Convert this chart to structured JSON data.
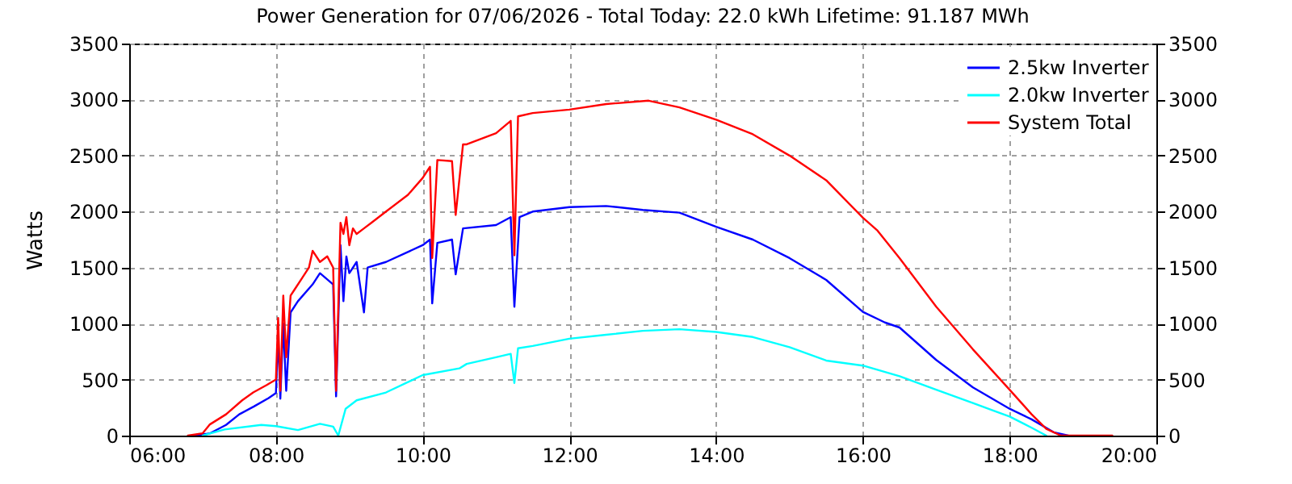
{
  "chart_data": {
    "type": "line",
    "title": "Power Generation for 07/06/2026 - Total Today: 22.0 kWh   Lifetime: 91.187 MWh",
    "ylabel": "Watts",
    "xlim": [
      6,
      20
    ],
    "xticks": [
      {
        "value": 6,
        "label": "06:00"
      },
      {
        "value": 8,
        "label": "08:00"
      },
      {
        "value": 10,
        "label": "10:00"
      },
      {
        "value": 12,
        "label": "12:00"
      },
      {
        "value": 14,
        "label": "14:00"
      },
      {
        "value": 16,
        "label": "16:00"
      },
      {
        "value": 18,
        "label": "18:00"
      },
      {
        "value": 20,
        "label": "20:00"
      }
    ],
    "ylim": [
      0,
      3500
    ],
    "yticks": [
      0,
      500,
      1000,
      1500,
      2000,
      2500,
      3000,
      3500
    ],
    "y2lim": [
      0,
      3500
    ],
    "y2ticks": [
      0,
      500,
      1000,
      1500,
      2000,
      2500,
      3000,
      3500
    ],
    "grid": true,
    "legend": "top right",
    "line_style": "solid",
    "series": [
      {
        "name": "2.5kw Inverter",
        "color": "#0000ff",
        "x": [
          6.9,
          7.1,
          7.32,
          7.5,
          7.7,
          7.9,
          8.0,
          8.03,
          8.06,
          8.1,
          8.14,
          8.2,
          8.3,
          8.5,
          8.6,
          8.78,
          8.82,
          8.88,
          8.92,
          8.96,
          9.0,
          9.1,
          9.2,
          9.25,
          9.5,
          10.0,
          10.1,
          10.13,
          10.2,
          10.4,
          10.45,
          10.55,
          11.0,
          11.2,
          11.25,
          11.32,
          11.5,
          12.0,
          12.5,
          13.0,
          13.5,
          14.0,
          14.5,
          15.0,
          15.5,
          16.0,
          16.3,
          16.5,
          17.0,
          17.5,
          18.0,
          18.3,
          18.6,
          18.8
        ],
        "values": [
          0,
          20,
          95,
          190,
          260,
          335,
          380,
          900,
          330,
          1000,
          400,
          1100,
          1200,
          1350,
          1450,
          1350,
          350,
          1700,
          1200,
          1600,
          1450,
          1550,
          1100,
          1500,
          1550,
          1700,
          1750,
          1180,
          1720,
          1750,
          1440,
          1850,
          1880,
          1950,
          1150,
          1950,
          2000,
          2040,
          2050,
          2015,
          1990,
          1865,
          1750,
          1585,
          1390,
          1105,
          1010,
          965,
          675,
          430,
          240,
          145,
          30,
          0
        ]
      },
      {
        "name": "2.0kw Inverter",
        "color": "#00ffff",
        "x": [
          7.0,
          7.3,
          7.8,
          8.0,
          8.3,
          8.6,
          8.78,
          8.85,
          8.95,
          9.1,
          9.5,
          10.0,
          10.5,
          10.6,
          11.0,
          11.2,
          11.25,
          11.3,
          11.5,
          12.0,
          12.5,
          13.0,
          13.5,
          14.0,
          14.5,
          15.0,
          15.5,
          16.0,
          16.5,
          17.0,
          17.5,
          18.0,
          18.3,
          18.5
        ],
        "values": [
          0,
          55,
          95,
          85,
          50,
          105,
          80,
          0,
          240,
          315,
          385,
          540,
          600,
          640,
          700,
          730,
          470,
          780,
          800,
          865,
          900,
          935,
          950,
          925,
          880,
          790,
          670,
          625,
          530,
          410,
          290,
          170,
          70,
          0
        ]
      },
      {
        "name": "System Total",
        "color": "#ff0000",
        "x": [
          6.8,
          7.0,
          7.1,
          7.32,
          7.54,
          7.69,
          7.87,
          8.0,
          8.03,
          8.06,
          8.1,
          8.14,
          8.2,
          8.25,
          8.35,
          8.45,
          8.5,
          8.6,
          8.7,
          8.78,
          8.82,
          8.88,
          8.92,
          8.96,
          9.0,
          9.05,
          9.1,
          9.2,
          9.3,
          9.5,
          9.8,
          10.0,
          10.1,
          10.13,
          10.2,
          10.4,
          10.45,
          10.55,
          10.6,
          11.0,
          11.2,
          11.25,
          11.3,
          11.5,
          12.0,
          12.5,
          13.08,
          13.5,
          14.0,
          14.5,
          15.0,
          15.5,
          16.0,
          16.2,
          16.5,
          17.0,
          17.5,
          18.0,
          18.3,
          18.5,
          18.7,
          19.4
        ],
        "values": [
          0,
          20,
          100,
          190,
          315,
          385,
          450,
          500,
          1050,
          400,
          1250,
          700,
          1250,
          1300,
          1400,
          1500,
          1650,
          1550,
          1600,
          1500,
          400,
          1900,
          1800,
          1950,
          1700,
          1850,
          1800,
          1850,
          1900,
          2000,
          2150,
          2300,
          2400,
          1585,
          2460,
          2450,
          1970,
          2600,
          2600,
          2700,
          2810,
          1610,
          2850,
          2880,
          2910,
          2960,
          2990,
          2930,
          2820,
          2690,
          2500,
          2280,
          1945,
          1830,
          1585,
          1150,
          770,
          410,
          190,
          60,
          0,
          0
        ]
      }
    ]
  }
}
